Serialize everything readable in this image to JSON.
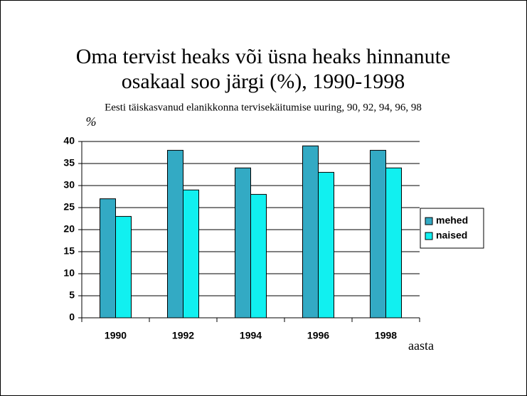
{
  "chart_data": {
    "type": "bar",
    "title": "Oma tervist heaks või üsna heaks hinnanute osakaal soo järgi (%), 1990-1998",
    "subtitle": "Eesti täiskasvanud elanikkonna tervisekäitumise uuring, 90, 92, 94, 96, 98",
    "y_label": "%",
    "x_label": "aasta",
    "categories": [
      "1990",
      "1992",
      "1994",
      "1996",
      "1998"
    ],
    "series": [
      {
        "name": "mehed",
        "color": "#33aac4",
        "values": [
          27,
          38,
          34,
          39,
          38
        ]
      },
      {
        "name": "naised",
        "color": "#11f0f0",
        "values": [
          23,
          29,
          28,
          33,
          34
        ]
      }
    ],
    "ylim": [
      0,
      40
    ],
    "yticks": [
      0,
      5,
      10,
      15,
      20,
      25,
      30,
      35,
      40
    ],
    "grid": true,
    "legend": "right"
  }
}
